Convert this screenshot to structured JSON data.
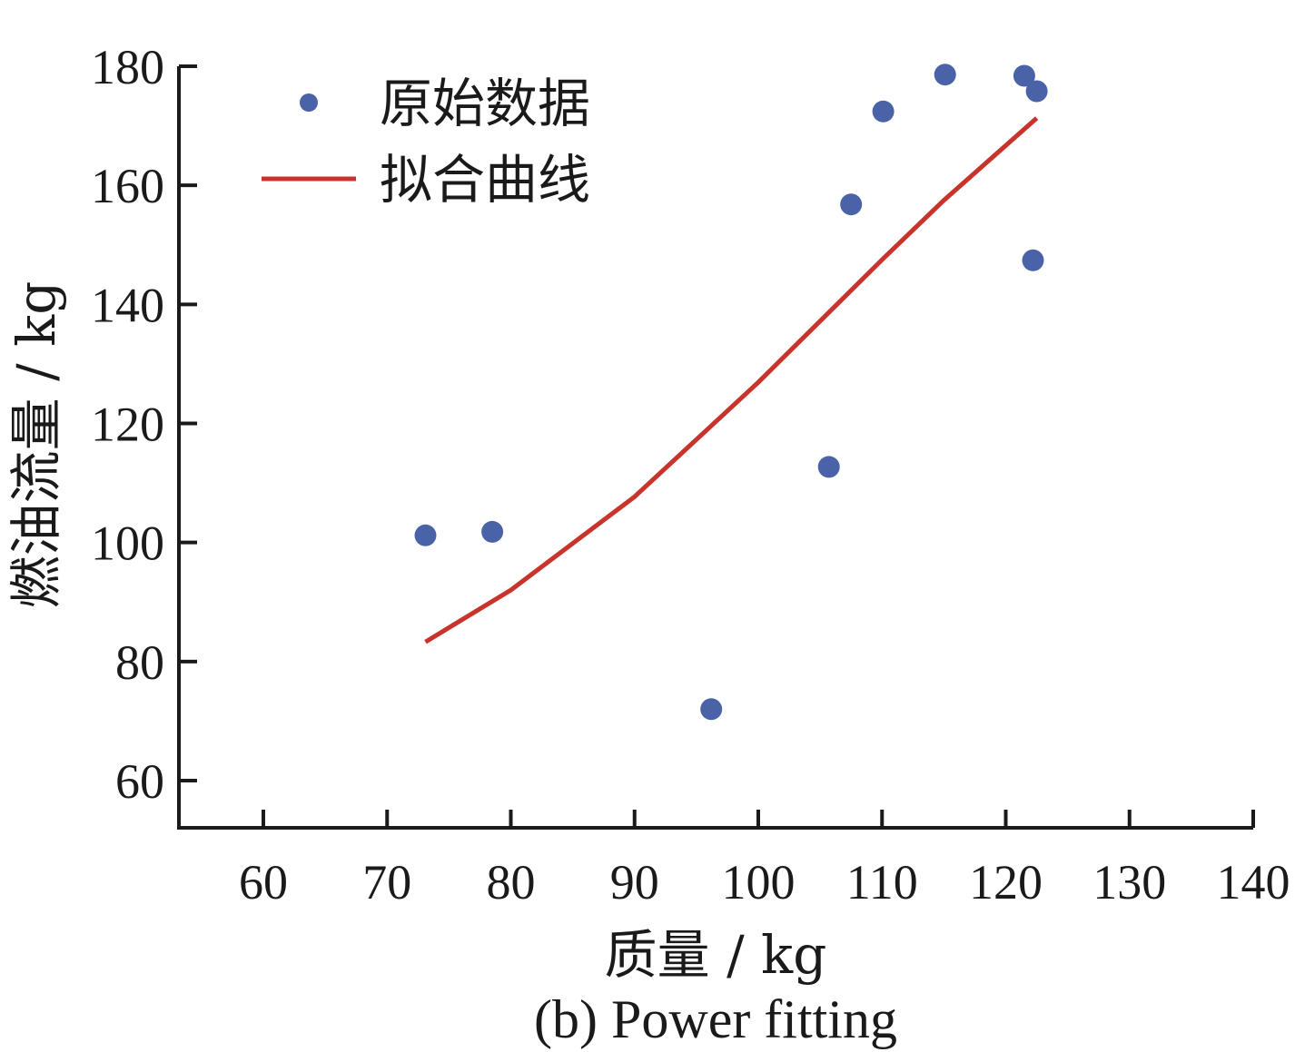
{
  "chart_data": {
    "type": "scatter",
    "title": "",
    "caption": "(b) Power fitting",
    "xlabel": "质量 / kg",
    "ylabel": "燃油流量 / kg",
    "xlim": [
      53,
      140
    ],
    "ylim": [
      52,
      180
    ],
    "xticks": [
      60,
      70,
      80,
      90,
      100,
      110,
      120,
      130,
      140
    ],
    "yticks": [
      60,
      80,
      100,
      120,
      140,
      160,
      180
    ],
    "legend_position": "top-left",
    "colors": {
      "points": "#4a62a8",
      "fit": "#c8332b",
      "axis": "#1a1a1a"
    },
    "series": [
      {
        "name": "原始数据",
        "kind": "scatter",
        "points": [
          {
            "x": 73.1,
            "y": 101.2
          },
          {
            "x": 78.5,
            "y": 101.8
          },
          {
            "x": 96.2,
            "y": 72.0
          },
          {
            "x": 105.7,
            "y": 112.7
          },
          {
            "x": 107.5,
            "y": 156.8
          },
          {
            "x": 110.1,
            "y": 172.4
          },
          {
            "x": 115.1,
            "y": 178.6
          },
          {
            "x": 121.5,
            "y": 178.4
          },
          {
            "x": 122.2,
            "y": 147.4
          },
          {
            "x": 122.5,
            "y": 175.8
          }
        ]
      },
      {
        "name": "拟合曲线",
        "kind": "line",
        "points": [
          {
            "x": 73.1,
            "y": 83.3
          },
          {
            "x": 80,
            "y": 92.0
          },
          {
            "x": 90,
            "y": 107.7
          },
          {
            "x": 100,
            "y": 126.9
          },
          {
            "x": 110,
            "y": 147.5
          },
          {
            "x": 115,
            "y": 157.5
          },
          {
            "x": 122.5,
            "y": 171.3
          }
        ]
      }
    ]
  }
}
